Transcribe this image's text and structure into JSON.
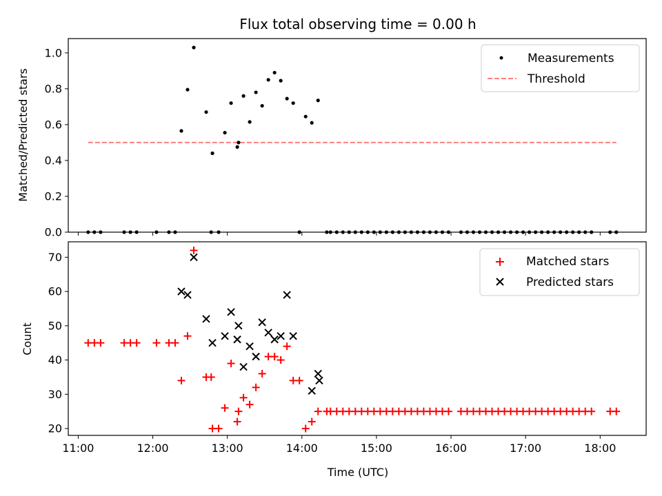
{
  "chart_data": [
    {
      "type": "scatter",
      "title": "Flux total observing time = 0.00 h",
      "xlabel": "",
      "ylabel": "Matched/Predicted stars",
      "ylim": [
        0,
        1.08
      ],
      "yticks": [
        0.0,
        0.2,
        0.4,
        0.6,
        0.8,
        1.0
      ],
      "ytick_labels": [
        "0.0",
        "0.2",
        "0.4",
        "0.6",
        "0.8",
        "1.0"
      ],
      "xlim": [
        "10:52",
        "18:37"
      ],
      "grid": false,
      "legend_position": "top-right",
      "series": [
        {
          "name": "Measurements",
          "color": "#000000",
          "marker": "dot",
          "x": [
            "11:08",
            "11:13",
            "11:18",
            "11:37",
            "11:42",
            "11:47",
            "12:03",
            "12:13",
            "12:18",
            "12:23",
            "12:28",
            "12:33",
            "12:43",
            "12:47",
            "12:48",
            "12:53",
            "12:58",
            "13:03",
            "13:08",
            "13:09",
            "13:13",
            "13:18",
            "13:23",
            "13:28",
            "13:33",
            "13:38",
            "13:43",
            "13:48",
            "13:53",
            "13:58",
            "14:03",
            "14:08",
            "14:13",
            "14:20",
            "14:23",
            "14:28",
            "14:33",
            "14:38",
            "14:43",
            "14:48",
            "14:53",
            "14:58",
            "15:03",
            "15:08",
            "15:13",
            "15:18",
            "15:23",
            "15:28",
            "15:33",
            "15:38",
            "15:43",
            "15:48",
            "15:53",
            "15:58",
            "16:08",
            "16:13",
            "16:18",
            "16:23",
            "16:28",
            "16:33",
            "16:38",
            "16:43",
            "16:48",
            "16:53",
            "16:58",
            "17:03",
            "17:08",
            "17:13",
            "17:18",
            "17:23",
            "17:28",
            "17:33",
            "17:38",
            "17:43",
            "17:48",
            "17:53",
            "18:08",
            "18:13"
          ],
          "y": [
            0,
            0,
            0,
            0,
            0,
            0,
            0,
            0,
            0,
            0.565,
            0.795,
            1.03,
            0.67,
            0,
            0.44,
            0,
            0.555,
            0.72,
            0.475,
            0.5,
            0.76,
            0.615,
            0.78,
            0.705,
            0.85,
            0.89,
            0.845,
            0.745,
            0.72,
            0,
            0.645,
            0.61,
            0.735,
            0,
            0,
            0,
            0,
            0,
            0,
            0,
            0,
            0,
            0,
            0,
            0,
            0,
            0,
            0,
            0,
            0,
            0,
            0,
            0,
            0,
            0,
            0,
            0,
            0,
            0,
            0,
            0,
            0,
            0,
            0,
            0,
            0,
            0,
            0,
            0,
            0,
            0,
            0,
            0,
            0,
            0,
            0,
            0,
            0
          ]
        },
        {
          "name": "Threshold",
          "color": "#ff7f7f",
          "style": "dashed",
          "x": [
            "11:08",
            "18:13"
          ],
          "y": [
            0.5,
            0.5
          ]
        }
      ]
    },
    {
      "type": "scatter",
      "title": "",
      "xlabel": "Time (UTC)",
      "ylabel": "Count",
      "ylim": [
        18,
        74.5
      ],
      "yticks": [
        20,
        30,
        40,
        50,
        60,
        70
      ],
      "ytick_labels": [
        "20",
        "30",
        "40",
        "50",
        "60",
        "70"
      ],
      "xlim": [
        "10:52",
        "18:37"
      ],
      "xticks": [
        "11:00",
        "12:00",
        "13:00",
        "14:00",
        "15:00",
        "16:00",
        "17:00",
        "18:00"
      ],
      "xtick_labels": [
        "11:00",
        "12:00",
        "13:00",
        "14:00",
        "15:00",
        "16:00",
        "17:00",
        "18:00"
      ],
      "grid": false,
      "legend_position": "top-right",
      "series": [
        {
          "name": "Matched stars",
          "color": "#ff0000",
          "marker": "plus",
          "x": [
            "11:08",
            "11:13",
            "11:18",
            "11:37",
            "11:42",
            "11:47",
            "12:03",
            "12:13",
            "12:18",
            "12:23",
            "12:28",
            "12:33",
            "12:43",
            "12:47",
            "12:48",
            "12:53",
            "12:58",
            "13:03",
            "13:08",
            "13:09",
            "13:13",
            "13:18",
            "13:23",
            "13:28",
            "13:33",
            "13:38",
            "13:43",
            "13:48",
            "13:53",
            "13:58",
            "14:03",
            "14:08",
            "14:13",
            "14:20",
            "14:23",
            "14:28",
            "14:33",
            "14:38",
            "14:43",
            "14:48",
            "14:53",
            "14:58",
            "15:03",
            "15:08",
            "15:13",
            "15:18",
            "15:23",
            "15:28",
            "15:33",
            "15:38",
            "15:43",
            "15:48",
            "15:53",
            "15:58",
            "16:08",
            "16:13",
            "16:18",
            "16:23",
            "16:28",
            "16:33",
            "16:38",
            "16:43",
            "16:48",
            "16:53",
            "16:58",
            "17:03",
            "17:08",
            "17:13",
            "17:18",
            "17:23",
            "17:28",
            "17:33",
            "17:38",
            "17:43",
            "17:48",
            "17:53",
            "18:08",
            "18:13"
          ],
          "y": [
            45,
            45,
            45,
            45,
            45,
            45,
            45,
            45,
            45,
            34,
            47,
            72,
            35,
            35,
            20,
            20,
            26,
            39,
            22,
            25,
            29,
            27,
            32,
            36,
            41,
            41,
            40,
            44,
            34,
            34,
            20,
            22,
            25,
            25,
            25,
            25,
            25,
            25,
            25,
            25,
            25,
            25,
            25,
            25,
            25,
            25,
            25,
            25,
            25,
            25,
            25,
            25,
            25,
            25,
            25,
            25,
            25,
            25,
            25,
            25,
            25,
            25,
            25,
            25,
            25,
            25,
            25,
            25,
            25,
            25,
            25,
            25,
            25,
            25,
            25,
            25,
            25,
            25
          ]
        },
        {
          "name": "Predicted stars",
          "color": "#000000",
          "marker": "x",
          "x": [
            "12:23",
            "12:28",
            "12:33",
            "12:43",
            "12:48",
            "12:58",
            "13:03",
            "13:08",
            "13:09",
            "13:13",
            "13:18",
            "13:23",
            "13:28",
            "13:33",
            "13:38",
            "13:43",
            "13:48",
            "13:53",
            "14:08",
            "14:13",
            "14:14"
          ],
          "y": [
            60,
            59,
            70,
            52,
            45,
            47,
            54,
            46,
            50,
            38,
            44,
            41,
            51,
            48,
            46,
            47,
            59,
            47,
            31,
            36,
            34
          ]
        }
      ]
    }
  ]
}
